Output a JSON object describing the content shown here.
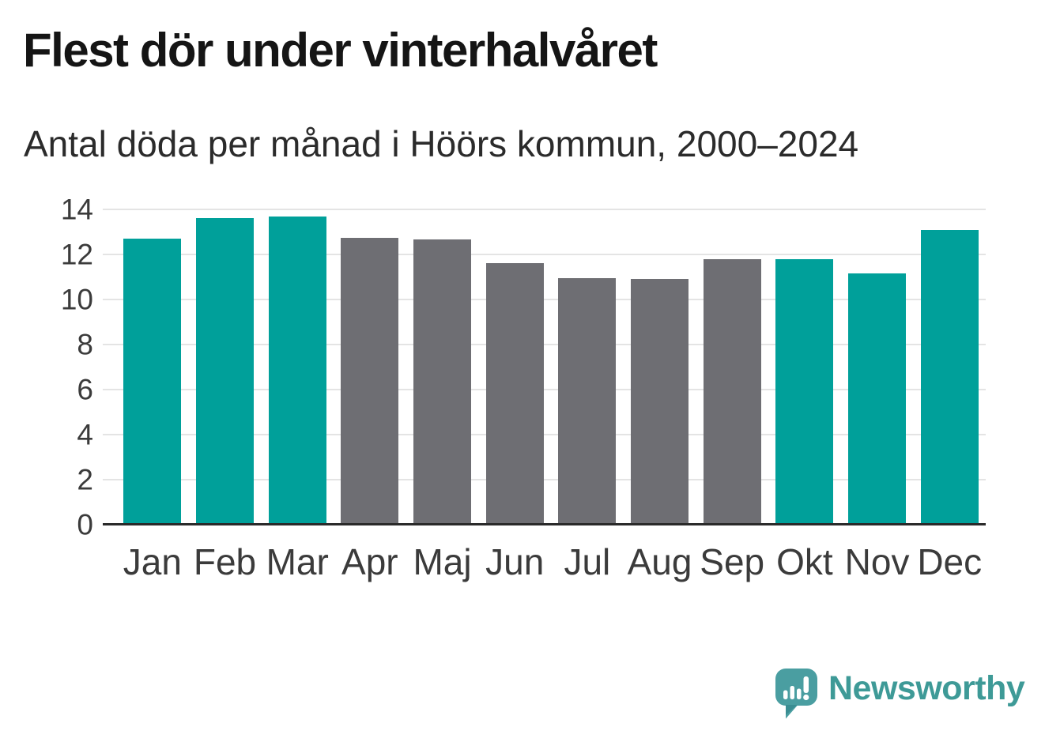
{
  "title": "Flest dör under vinterhalvåret",
  "subtitle": "Antal döda per månad i Höörs kommun, 2000–2024",
  "branding": {
    "logo_text": "Newsworthy",
    "logo_icon": "speech-bubble-bar-chart-icon"
  },
  "colors": {
    "winter_bar": "#00a09a",
    "summer_bar": "#6e6e73",
    "gridline": "#e4e4e4",
    "axis_line": "#2a2a2a",
    "title_text": "#151515",
    "label_text": "#3b3b3b",
    "brand_teal": "#3e9a97",
    "logo_bubble": "#4a9ea1",
    "logo_bubble_shade": "#3a8d92"
  },
  "chart_data": {
    "type": "bar",
    "title": "Flest dör under vinterhalvåret",
    "subtitle": "Antal döda per månad i Höörs kommun, 2000–2024",
    "categories": [
      "Jan",
      "Feb",
      "Mar",
      "Apr",
      "Maj",
      "Jun",
      "Jul",
      "Aug",
      "Sep",
      "Okt",
      "Nov",
      "Dec"
    ],
    "values": [
      12.7,
      13.6,
      13.7,
      12.75,
      12.65,
      11.6,
      10.95,
      10.9,
      11.8,
      11.8,
      11.15,
      13.1
    ],
    "bar_palette": [
      "winter",
      "winter",
      "winter",
      "summer",
      "summer",
      "summer",
      "summer",
      "summer",
      "summer",
      "winter",
      "winter",
      "winter"
    ],
    "xlabel": "",
    "ylabel": "",
    "ylim": [
      0,
      14
    ],
    "yticks": [
      0,
      2,
      4,
      6,
      8,
      10,
      12,
      14
    ],
    "grid": "horizontal",
    "legend": "none"
  }
}
